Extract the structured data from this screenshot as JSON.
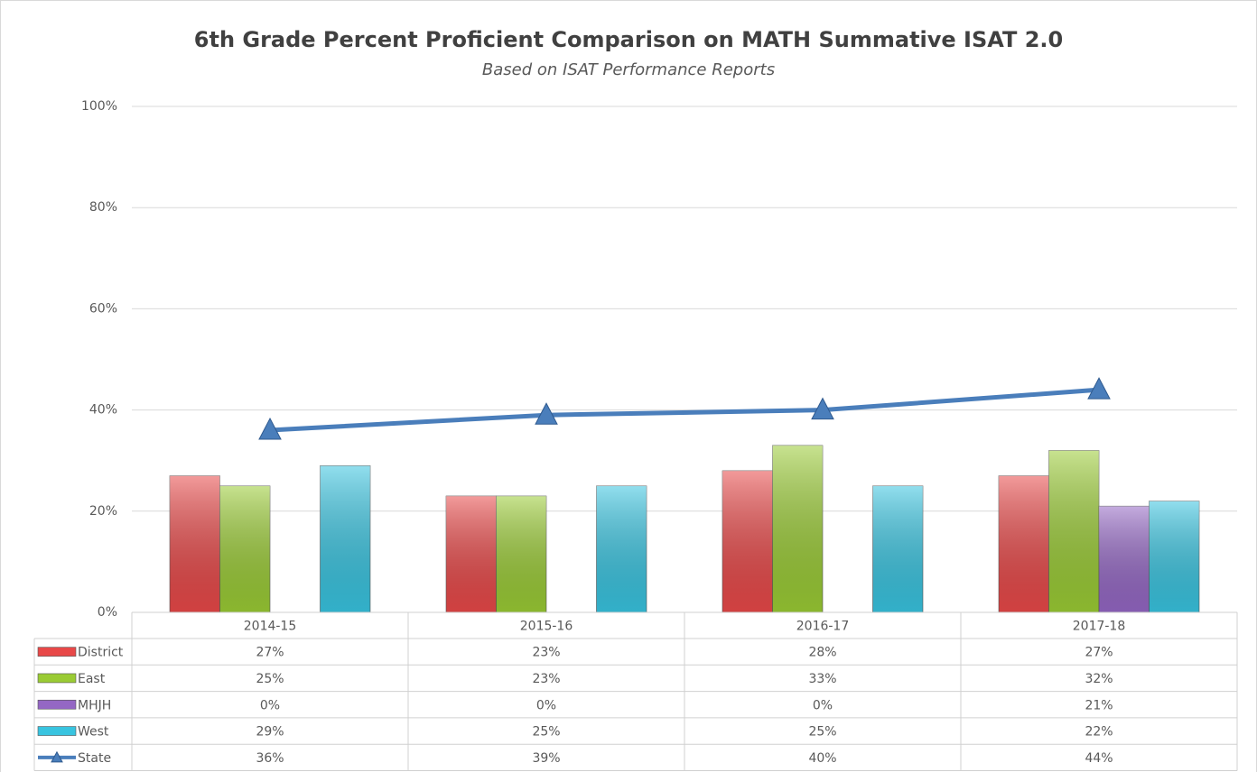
{
  "chart_data": {
    "type": "bar",
    "title": "6th Grade Percent Proficient Comparison on MATH Summative ISAT 2.0",
    "subtitle": "Based on ISAT Performance Reports",
    "categories": [
      "2014-15",
      "2015-16",
      "2016-17",
      "2017-18"
    ],
    "series": [
      {
        "name": "District",
        "color": "#e84848",
        "type": "bar",
        "values": [
          27,
          23,
          28,
          27
        ],
        "value_labels": [
          "27%",
          "23%",
          "28%",
          "27%"
        ]
      },
      {
        "name": "East",
        "color": "#9acb34",
        "type": "bar",
        "values": [
          25,
          23,
          33,
          32
        ],
        "value_labels": [
          "25%",
          "23%",
          "33%",
          "32%"
        ]
      },
      {
        "name": "MHJH",
        "color": "#9467c4",
        "type": "bar",
        "values": [
          0,
          0,
          0,
          21
        ],
        "value_labels": [
          "0%",
          "0%",
          "0%",
          "21%"
        ]
      },
      {
        "name": "West",
        "color": "#38c4e0",
        "type": "bar",
        "values": [
          29,
          25,
          25,
          22
        ],
        "value_labels": [
          "29%",
          "25%",
          "25%",
          "22%"
        ]
      },
      {
        "name": "State",
        "color": "#4a7ebb",
        "type": "line",
        "values": [
          36,
          39,
          40,
          44
        ],
        "value_labels": [
          "36%",
          "39%",
          "40%",
          "44%"
        ]
      }
    ],
    "ylim": [
      0,
      100
    ],
    "yticks": [
      {
        "value": 0,
        "label": "0%"
      },
      {
        "value": 20,
        "label": "20%"
      },
      {
        "value": 40,
        "label": "40%"
      },
      {
        "value": 60,
        "label": "60%"
      },
      {
        "value": 80,
        "label": "80%"
      },
      {
        "value": 100,
        "label": "100%"
      }
    ],
    "grid": true
  }
}
